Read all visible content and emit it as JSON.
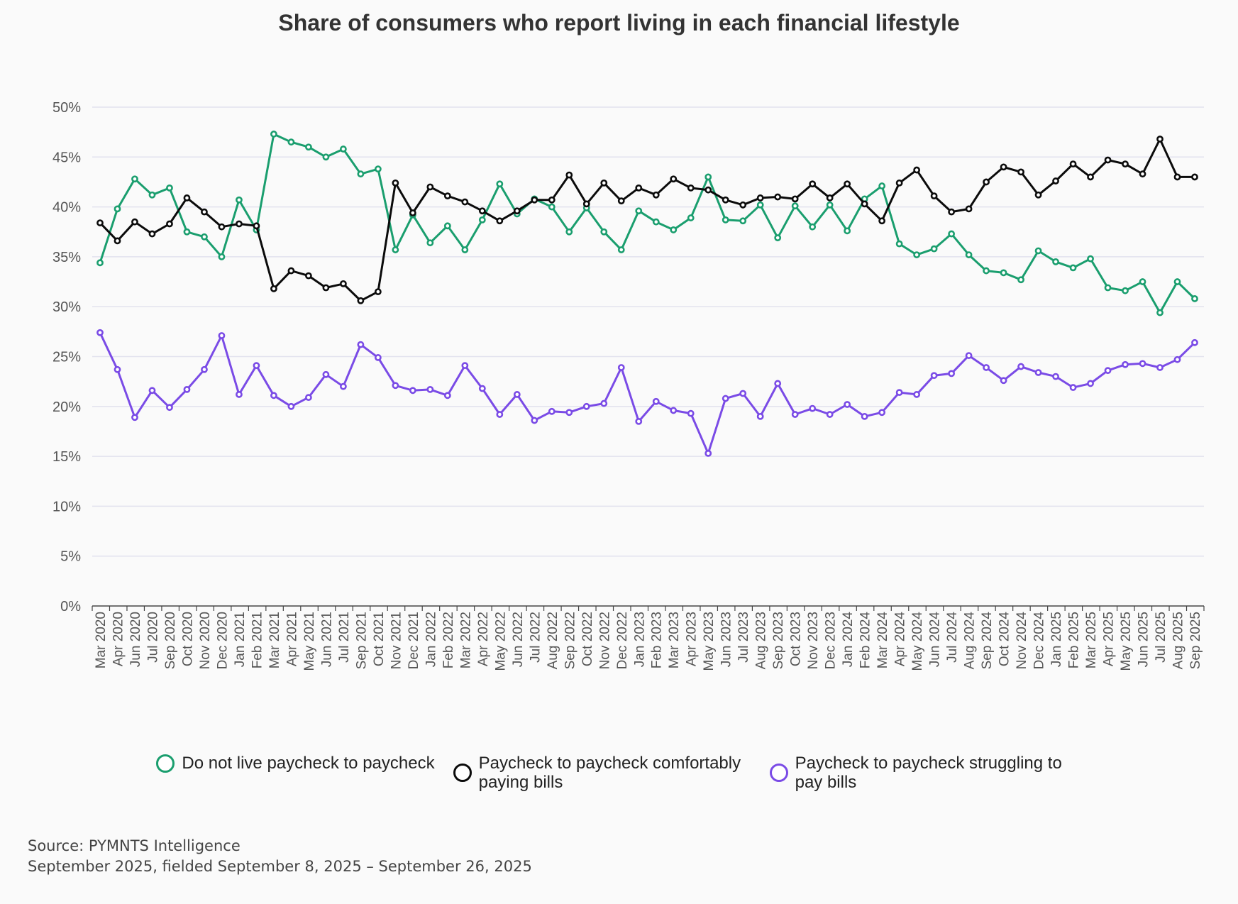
{
  "chart_data": {
    "type": "line",
    "title": "Share of consumers who report living in each financial lifestyle",
    "ylim": [
      0,
      50
    ],
    "yticks": [
      "0%",
      "5%",
      "10%",
      "15%",
      "20%",
      "25%",
      "30%",
      "35%",
      "40%",
      "45%",
      "50%"
    ],
    "grid": true,
    "legend_position": "bottom",
    "categories": [
      "Mar 2020",
      "Apr 2020",
      "Jun 2020",
      "Jul 2020",
      "Sep 2020",
      "Oct 2020",
      "Nov 2020",
      "Dec 2020",
      "Jan 2021",
      "Feb 2021",
      "Mar 2021",
      "Apr 2021",
      "May 2021",
      "Jun 2021",
      "Jul 2021",
      "Sep 2021",
      "Oct 2021",
      "Nov 2021",
      "Dec 2021",
      "Jan 2022",
      "Feb 2022",
      "Mar 2022",
      "Apr 2022",
      "May 2022",
      "Jun 2022",
      "Jul 2022",
      "Aug 2022",
      "Sep 2022",
      "Oct 2022",
      "Nov 2022",
      "Dec 2022",
      "Jan 2023",
      "Feb 2023",
      "Mar 2023",
      "Apr 2023",
      "May 2023",
      "Jun 2023",
      "Jul 2023",
      "Aug 2023",
      "Sep 2023",
      "Oct 2023",
      "Nov 2023",
      "Dec 2023",
      "Jan 2024",
      "Feb 2024",
      "Mar 2024",
      "Apr 2024",
      "May 2024",
      "Jun 2024",
      "Jul 2024",
      "Aug 2024",
      "Sep 2024",
      "Oct 2024",
      "Nov 2024",
      "Dec 2024",
      "Jan 2025",
      "Feb 2025",
      "Mar 2025",
      "Apr 2025",
      "May 2025",
      "Jun 2025",
      "Jul 2025",
      "Aug 2025",
      "Sep 2025"
    ],
    "series": [
      {
        "name": "Do not live paycheck to paycheck",
        "color": "#1a9e6e",
        "values": [
          34.4,
          39.8,
          42.8,
          41.2,
          41.9,
          37.5,
          37.0,
          35.0,
          40.7,
          37.7,
          47.3,
          46.5,
          46.0,
          45.0,
          45.8,
          43.3,
          43.8,
          35.7,
          39.2,
          36.4,
          38.1,
          35.7,
          38.7,
          42.3,
          39.3,
          40.8,
          40.0,
          37.5,
          39.9,
          37.5,
          35.7,
          39.6,
          38.5,
          37.7,
          38.9,
          43.0,
          38.7,
          38.6,
          40.2,
          36.9,
          40.1,
          38.0,
          40.2,
          37.6,
          40.8,
          42.1,
          36.3,
          35.2,
          35.8,
          37.3,
          35.2,
          33.6,
          33.4,
          32.7,
          35.6,
          34.5,
          33.9,
          34.8,
          31.9,
          31.6,
          32.5,
          29.4,
          32.5,
          30.8
        ]
      },
      {
        "name": "Paycheck to paycheck comfortably paying bills",
        "color": "#0b0b0b",
        "values": [
          38.4,
          36.6,
          38.5,
          37.3,
          38.3,
          40.9,
          39.5,
          38.0,
          38.3,
          38.1,
          31.8,
          33.6,
          33.1,
          31.9,
          32.3,
          30.6,
          31.5,
          42.4,
          39.4,
          42.0,
          41.1,
          40.5,
          39.6,
          38.6,
          39.6,
          40.7,
          40.7,
          43.2,
          40.3,
          42.4,
          40.6,
          41.9,
          41.2,
          42.8,
          41.9,
          41.7,
          40.7,
          40.2,
          40.9,
          41.0,
          40.8,
          42.3,
          40.9,
          42.3,
          40.3,
          38.6,
          42.4,
          43.7,
          41.1,
          39.5,
          39.8,
          42.5,
          44.0,
          43.5,
          41.2,
          42.6,
          44.3,
          43.0,
          44.7,
          44.3,
          43.3,
          46.8,
          43.0,
          43.0
        ]
      },
      {
        "name": "Paycheck to paycheck struggling to pay bills",
        "color": "#7a4be6",
        "values": [
          27.4,
          23.7,
          18.9,
          21.6,
          19.9,
          21.7,
          23.7,
          27.1,
          21.2,
          24.1,
          21.1,
          20.0,
          20.9,
          23.2,
          22.0,
          26.2,
          24.9,
          22.1,
          21.6,
          21.7,
          21.1,
          24.1,
          21.8,
          19.2,
          21.2,
          18.6,
          19.5,
          19.4,
          20.0,
          20.3,
          23.9,
          18.5,
          20.5,
          19.6,
          19.3,
          15.3,
          20.8,
          21.3,
          19.0,
          22.3,
          19.2,
          19.8,
          19.2,
          20.2,
          19.0,
          19.4,
          21.4,
          21.2,
          23.1,
          23.3,
          25.1,
          23.9,
          22.6,
          24.0,
          23.4,
          23.0,
          21.9,
          22.3,
          23.6,
          24.2,
          24.3,
          23.9,
          24.7,
          26.4
        ]
      }
    ]
  },
  "legend": {
    "items": [
      {
        "label": "Do not live paycheck to paycheck",
        "color": "#1a9e6e"
      },
      {
        "label": "Paycheck to paycheck comfortably paying bills",
        "color": "#0b0b0b"
      },
      {
        "label": "Paycheck to paycheck struggling to pay bills",
        "color": "#7a4be6"
      }
    ]
  },
  "source": {
    "line1": "Source: PYMNTS Intelligence",
    "line2": "September 2025, fielded September 8, 2025 – September 26, 2025"
  }
}
